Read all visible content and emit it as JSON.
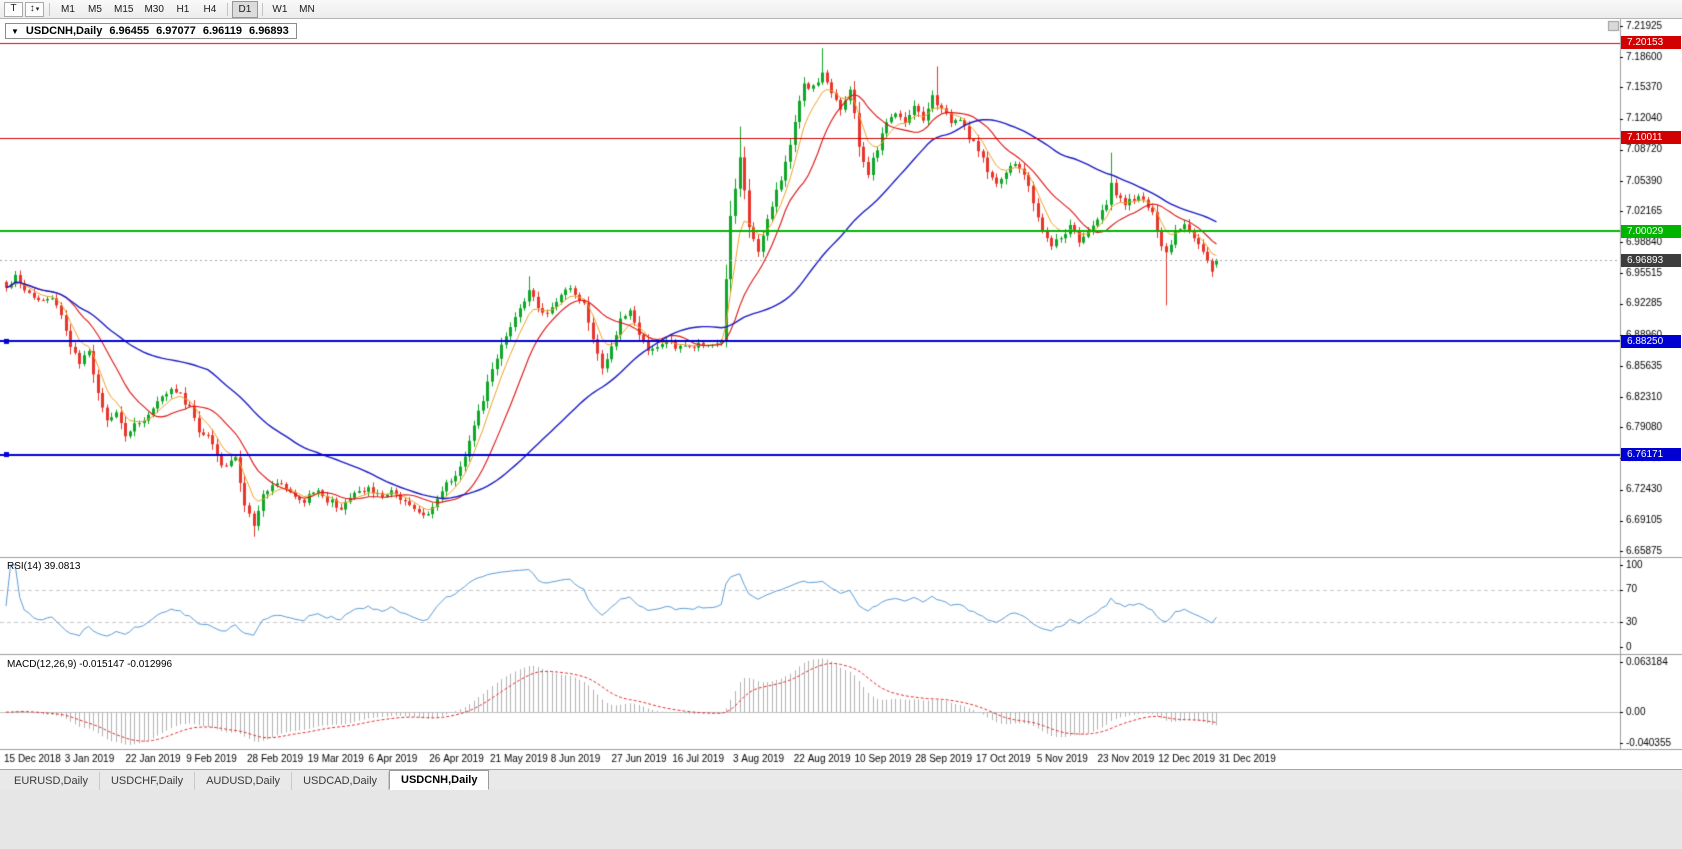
{
  "toolbar": {
    "text_tool_label": "T",
    "objects_tool_glyph": "↕",
    "dropdown_glyph": "▾",
    "timeframes": [
      "M1",
      "M5",
      "M15",
      "M30",
      "H1",
      "H4",
      "D1",
      "W1",
      "MN"
    ],
    "active_timeframe": "D1"
  },
  "symbol_info": {
    "dropdown_glyph": "▼",
    "symbol": "USDCNH,Daily",
    "open": "6.96455",
    "high": "6.97077",
    "low": "6.96119",
    "close": "6.96893"
  },
  "rsi": {
    "label": "RSI(14) 39.0813",
    "period": 14,
    "current_value": 39.0813,
    "axis_ticks": [
      "100",
      "70",
      "30",
      "0"
    ],
    "level_lines": [
      70,
      30
    ],
    "line_color": "#5b9bd5"
  },
  "macd": {
    "label": "MACD(12,26,9) -0.015147 -0.012996",
    "parameters": "12,26,9",
    "macd_value": -0.015147,
    "signal_value": -0.012996,
    "axis_ticks": [
      "0.063184",
      "0.00",
      "-0.040355"
    ],
    "axis_max": 0.063184,
    "axis_min": -0.040355,
    "histogram_color": "#b2b2b2",
    "signal_color": "#e03030"
  },
  "bottom_tabs": {
    "tabs": [
      "EURUSD,Daily",
      "USDCHF,Daily",
      "AUDUSD,Daily",
      "USDCAD,Daily",
      "USDCNH,Daily"
    ],
    "active": "USDCNH,Daily"
  },
  "chart_data": {
    "type": "candlestick",
    "symbol": "USDCNH",
    "timeframe": "Daily",
    "price_max": 7.21925,
    "price_min": 6.65875,
    "y_axis_ticks": [
      "7.21925",
      "7.18600",
      "7.15370",
      "7.12040",
      "7.08720",
      "7.05390",
      "7.02165",
      "6.98840",
      "6.95515",
      "6.92285",
      "6.88960",
      "6.85635",
      "6.82310",
      "6.79080",
      "6.75755",
      "6.72430",
      "6.69105",
      "6.65875"
    ],
    "x_axis_labels": [
      "15 Dec 2018",
      "3 Jan 2019",
      "22 Jan 2019",
      "9 Feb 2019",
      "28 Feb 2019",
      "19 Mar 2019",
      "6 Apr 2019",
      "26 Apr 2019",
      "21 May 2019",
      "8 Jun 2019",
      "27 Jun 2019",
      "16 Jul 2019",
      "3 Aug 2019",
      "22 Aug 2019",
      "10 Sep 2019",
      "28 Sep 2019",
      "17 Oct 2019",
      "5 Nov 2019",
      "23 Nov 2019",
      "12 Dec 2019",
      "31 Dec 2019"
    ],
    "horizontal_levels": [
      {
        "value": 7.20153,
        "label": "7.20153",
        "color": "#d20000",
        "width": 1,
        "handle": false
      },
      {
        "value": 7.10011,
        "label": "7.10011",
        "color": "#d20000",
        "width": 1,
        "handle": false
      },
      {
        "value": 7.00029,
        "label": "7.00029",
        "color": "#00b400",
        "width": 2,
        "handle": false
      },
      {
        "value": 6.8825,
        "label": "6.88250",
        "color": "#0000d2",
        "width": 2,
        "handle": true
      },
      {
        "value": 6.76171,
        "label": "6.76171",
        "color": "#0000d2",
        "width": 2,
        "handle": true
      }
    ],
    "current_price": {
      "value": 6.96893,
      "label": "6.96893",
      "tag_color": "#3d3d3d"
    },
    "candle_count": 265,
    "colors": {
      "up": "#0fa728",
      "down": "#e8352b"
    },
    "moving_averages": [
      {
        "type": "ema",
        "period": 6,
        "color": "#eda128",
        "width": 1
      },
      {
        "type": "sma",
        "period": 14,
        "color": "#dd1414",
        "width": 1.1
      },
      {
        "type": "sma",
        "period": 45,
        "color": "#1a1ac4",
        "width": 1.4
      }
    ],
    "last_candle": {
      "open": 6.96455,
      "high": 6.97077,
      "low": 6.96119,
      "close": 6.96893
    },
    "close_anchors": [
      [
        0,
        6.94
      ],
      [
        2,
        6.951
      ],
      [
        4,
        6.938
      ],
      [
        6,
        6.93
      ],
      [
        8,
        6.926
      ],
      [
        10,
        6.931
      ],
      [
        12,
        6.912
      ],
      [
        14,
        6.878
      ],
      [
        16,
        6.86
      ],
      [
        18,
        6.869
      ],
      [
        20,
        6.825
      ],
      [
        22,
        6.798
      ],
      [
        24,
        6.806
      ],
      [
        26,
        6.782
      ],
      [
        28,
        6.792
      ],
      [
        31,
        6.806
      ],
      [
        34,
        6.824
      ],
      [
        37,
        6.831
      ],
      [
        40,
        6.812
      ],
      [
        42,
        6.786
      ],
      [
        45,
        6.776
      ],
      [
        47,
        6.748
      ],
      [
        50,
        6.757
      ],
      [
        52,
        6.708
      ],
      [
        54,
        6.688
      ],
      [
        56,
        6.716
      ],
      [
        59,
        6.734
      ],
      [
        62,
        6.722
      ],
      [
        65,
        6.712
      ],
      [
        68,
        6.726
      ],
      [
        70,
        6.713
      ],
      [
        73,
        6.706
      ],
      [
        76,
        6.718
      ],
      [
        79,
        6.727
      ],
      [
        82,
        6.716
      ],
      [
        84,
        6.722
      ],
      [
        87,
        6.713
      ],
      [
        90,
        6.701
      ],
      [
        92,
        6.696
      ],
      [
        94,
        6.714
      ],
      [
        96,
        6.729
      ],
      [
        98,
        6.741
      ],
      [
        100,
        6.762
      ],
      [
        102,
        6.792
      ],
      [
        104,
        6.822
      ],
      [
        106,
        6.852
      ],
      [
        108,
        6.876
      ],
      [
        110,
        6.901
      ],
      [
        112,
        6.916
      ],
      [
        114,
        6.934
      ],
      [
        116,
        6.921
      ],
      [
        118,
        6.911
      ],
      [
        120,
        6.926
      ],
      [
        122,
        6.941
      ],
      [
        124,
        6.931
      ],
      [
        126,
        6.924
      ],
      [
        128,
        6.882
      ],
      [
        130,
        6.857
      ],
      [
        132,
        6.876
      ],
      [
        134,
        6.904
      ],
      [
        136,
        6.919
      ],
      [
        138,
        6.891
      ],
      [
        140,
        6.872
      ],
      [
        142,
        6.879
      ],
      [
        144,
        6.883
      ],
      [
        146,
        6.876
      ],
      [
        148,
        6.881
      ],
      [
        150,
        6.877
      ],
      [
        152,
        6.88
      ],
      [
        154,
        6.878
      ],
      [
        156,
        6.881
      ],
      [
        157,
        6.948
      ],
      [
        158,
        7.018
      ],
      [
        159,
        7.048
      ],
      [
        160,
        7.078
      ],
      [
        161,
        7.042
      ],
      [
        162,
        7.002
      ],
      [
        164,
        6.976
      ],
      [
        166,
        7.012
      ],
      [
        168,
        7.042
      ],
      [
        170,
        7.072
      ],
      [
        172,
        7.118
      ],
      [
        174,
        7.158
      ],
      [
        176,
        7.153
      ],
      [
        178,
        7.168
      ],
      [
        180,
        7.146
      ],
      [
        182,
        7.131
      ],
      [
        184,
        7.154
      ],
      [
        186,
        7.092
      ],
      [
        188,
        7.062
      ],
      [
        190,
        7.089
      ],
      [
        192,
        7.114
      ],
      [
        194,
        7.129
      ],
      [
        196,
        7.119
      ],
      [
        198,
        7.134
      ],
      [
        200,
        7.121
      ],
      [
        202,
        7.143
      ],
      [
        204,
        7.131
      ],
      [
        206,
        7.116
      ],
      [
        208,
        7.121
      ],
      [
        210,
        7.101
      ],
      [
        212,
        7.086
      ],
      [
        214,
        7.066
      ],
      [
        216,
        7.051
      ],
      [
        218,
        7.064
      ],
      [
        220,
        7.074
      ],
      [
        222,
        7.061
      ],
      [
        224,
        7.031
      ],
      [
        226,
        7.001
      ],
      [
        228,
        6.986
      ],
      [
        230,
        6.996
      ],
      [
        232,
        7.004
      ],
      [
        234,
        6.991
      ],
      [
        236,
        7.001
      ],
      [
        238,
        7.016
      ],
      [
        240,
        7.031
      ],
      [
        241,
        7.052
      ],
      [
        242,
        7.041
      ],
      [
        244,
        7.031
      ],
      [
        246,
        7.036
      ],
      [
        248,
        7.033
      ],
      [
        250,
        7.021
      ],
      [
        252,
        6.986
      ],
      [
        253,
        6.976
      ],
      [
        255,
        7.001
      ],
      [
        257,
        7.009
      ],
      [
        259,
        6.996
      ],
      [
        261,
        6.976
      ],
      [
        263,
        6.956
      ],
      [
        264,
        6.96893
      ]
    ],
    "wick_overrides": [
      {
        "i": 54,
        "low": 6.674
      },
      {
        "i": 114,
        "high": 6.952
      },
      {
        "i": 157,
        "low": 6.876
      },
      {
        "i": 160,
        "high": 7.112
      },
      {
        "i": 178,
        "high": 7.1955
      },
      {
        "i": 203,
        "high": 7.176
      },
      {
        "i": 241,
        "high": 7.084
      },
      {
        "i": 253,
        "low": 6.921
      }
    ]
  }
}
